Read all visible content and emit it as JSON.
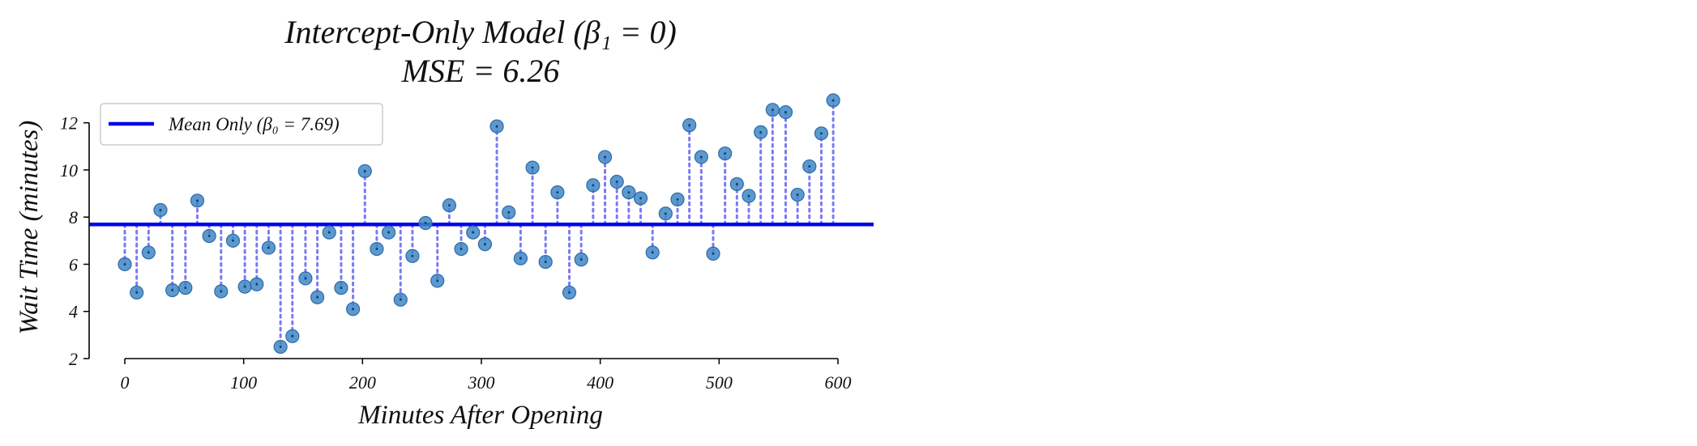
{
  "chart_data": {
    "type": "scatter",
    "title": "Intercept-Only Model (β₁ = 0)",
    "subtitle": "MSE = 6.26",
    "xlabel": "Minutes After Opening",
    "ylabel": "Wait Time (minutes)",
    "xlim": [
      -30,
      630
    ],
    "ylim": [
      2,
      13.5
    ],
    "xticks": [
      0,
      100,
      200,
      300,
      400,
      500,
      600
    ],
    "yticks": [
      2,
      4,
      6,
      8,
      10,
      12
    ],
    "xtick_labels": [
      "0",
      "100",
      "200",
      "300",
      "400",
      "500",
      "600"
    ],
    "ytick_labels": [
      "2",
      "4",
      "6",
      "8",
      "10",
      "12"
    ],
    "grid": false,
    "legend": {
      "placement": "top-left",
      "entries": [
        "Mean Only (β₀ = 7.69)"
      ]
    },
    "mean_line": {
      "y": 7.69,
      "color": "#0000ee"
    },
    "residual_color": "#7a7af5",
    "point_color": "#3f87c6",
    "x": [
      0,
      10,
      20,
      30,
      40,
      51,
      61,
      71,
      81,
      91,
      101,
      111,
      121,
      131,
      141,
      152,
      162,
      172,
      182,
      192,
      202,
      212,
      222,
      232,
      242,
      253,
      263,
      273,
      283,
      293,
      303,
      313,
      323,
      333,
      343,
      354,
      364,
      374,
      384,
      394,
      404,
      414,
      424,
      434,
      444,
      455,
      465,
      475,
      485,
      495,
      505,
      515,
      525,
      535,
      545,
      556,
      566,
      576,
      586,
      596
    ],
    "y": [
      6.0,
      4.8,
      6.5,
      8.3,
      4.9,
      5.0,
      8.7,
      7.2,
      4.85,
      7.0,
      5.05,
      5.15,
      6.7,
      2.5,
      2.95,
      5.4,
      4.6,
      7.35,
      5.0,
      4.1,
      9.95,
      6.65,
      7.35,
      4.5,
      6.35,
      7.75,
      5.3,
      8.5,
      6.65,
      7.35,
      6.85,
      11.85,
      8.2,
      6.25,
      10.1,
      6.1,
      9.05,
      4.8,
      6.2,
      9.35,
      10.55,
      9.5,
      9.05,
      8.8,
      6.5,
      8.15,
      8.75,
      11.9,
      10.55,
      6.45,
      10.7,
      9.4,
      8.9,
      11.6,
      12.55,
      12.45,
      8.95,
      10.15,
      11.55,
      12.95
    ]
  }
}
